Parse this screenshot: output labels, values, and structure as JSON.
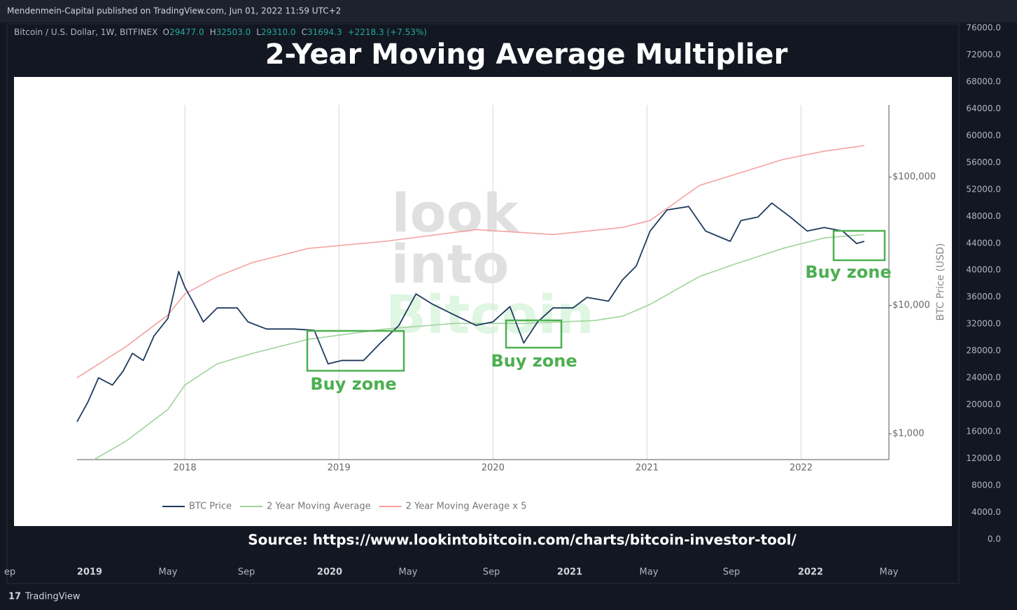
{
  "header": {
    "publisher": "Mendenmein-Capital published on TradingView.com, Jun 01, 2022 11:59 UTC+2"
  },
  "symbol": {
    "name": "Bitcoin / U.S. Dollar, 1W, BITFINEX",
    "ohlc": [
      {
        "label": "O",
        "value": "29477.0"
      },
      {
        "label": "H",
        "value": "32503.0"
      },
      {
        "label": "L",
        "value": "29310.0"
      },
      {
        "label": "C",
        "value": "31694.3"
      }
    ],
    "change": "+2218.3 (+7.53%)"
  },
  "chart_data": {
    "type": "line",
    "title": "2-Year Moving Average Multiplier",
    "ylabel": "BTC Price (USD)",
    "log_y": true,
    "grid_x": true,
    "legend": "bottom",
    "xlim": [
      2017.3,
      2022.57
    ],
    "xticks": [
      2018,
      2019,
      2020,
      2021,
      2022
    ],
    "ylim": [
      630,
      365000
    ],
    "yticks": [
      {
        "value": 1000,
        "label": "$1,000"
      },
      {
        "value": 10000,
        "label": "$10,000"
      },
      {
        "value": 100000,
        "label": "$100,000"
      }
    ],
    "watermark": [
      "look",
      "into",
      "Bitcoin"
    ],
    "annotations": [
      "Buy zone",
      "Buy zone",
      "Buy zone"
    ],
    "series": [
      {
        "name": "BTC Price",
        "color": "#1f3a5f",
        "x": [
          2017.3,
          2017.37,
          2017.44,
          2017.53,
          2017.6,
          2017.66,
          2017.73,
          2017.8,
          2017.89,
          2017.96,
          2018.0,
          2018.05,
          2018.12,
          2018.21,
          2018.34,
          2018.41,
          2018.53,
          2018.71,
          2018.84,
          2018.93,
          2019.02,
          2019.16,
          2019.27,
          2019.39,
          2019.5,
          2019.61,
          2019.75,
          2019.89,
          2020.0,
          2020.11,
          2020.2,
          2020.29,
          2020.39,
          2020.52,
          2020.61,
          2020.75,
          2020.84,
          2020.93,
          2021.02,
          2021.13,
          2021.27,
          2021.38,
          2021.54,
          2021.61,
          2021.72,
          2021.81,
          2021.93,
          2022.04,
          2022.15,
          2022.27,
          2022.36,
          2022.41
        ],
        "values": [
          1240,
          1760,
          2730,
          2400,
          3090,
          4240,
          3730,
          5800,
          7930,
          18400,
          13900,
          10800,
          7450,
          9570,
          9570,
          7450,
          6560,
          6560,
          6400,
          3510,
          3730,
          3730,
          5100,
          7000,
          12300,
          10200,
          8430,
          7000,
          7450,
          9800,
          5100,
          7450,
          9570,
          9570,
          11560,
          10800,
          15800,
          20300,
          38000,
          55500,
          59000,
          38000,
          31600,
          45900,
          48900,
          62800,
          48900,
          38000,
          40500,
          38000,
          30400,
          31600
        ]
      },
      {
        "name": "2 Year Moving Average",
        "color": "#9fd49c",
        "x": [
          2017.41,
          2017.62,
          2017.89,
          2018.0,
          2018.21,
          2018.44,
          2018.8,
          2019.3,
          2019.75,
          2020.2,
          2020.66,
          2020.84,
          2021.02,
          2021.34,
          2021.56,
          2021.88,
          2022.15,
          2022.41
        ],
        "values": [
          630,
          880,
          1550,
          2400,
          3510,
          4240,
          5450,
          6560,
          7250,
          7250,
          7630,
          8240,
          10200,
          16800,
          20800,
          27800,
          33600,
          35700
        ]
      },
      {
        "name": "2 Year Moving Average x 5",
        "color": "#f4a3a0",
        "x": [
          2017.3,
          2017.62,
          2017.89,
          2018.0,
          2018.21,
          2018.44,
          2018.8,
          2019.3,
          2019.89,
          2020.39,
          2020.84,
          2021.02,
          2021.34,
          2021.56,
          2021.88,
          2022.15,
          2022.41
        ],
        "values": [
          2730,
          4800,
          8430,
          12300,
          16800,
          21600,
          27800,
          31600,
          39000,
          35700,
          40500,
          45900,
          86100,
          104000,
          137000,
          159000,
          176000
        ]
      }
    ]
  },
  "source": "Source: https://www.lookintobitcoin.com/charts/bitcoin-investor-tool/",
  "price_scale": [
    "76000.0",
    "72000.0",
    "68000.0",
    "64000.0",
    "60000.0",
    "56000.0",
    "52000.0",
    "48000.0",
    "44000.0",
    "40000.0",
    "36000.0",
    "32000.0",
    "28000.0",
    "24000.0",
    "20000.0",
    "16000.0",
    "12000.0",
    "8000.0",
    "4000.0",
    "0.0"
  ],
  "time_scale": [
    "ep",
    "2019",
    "May",
    "Sep",
    "2020",
    "May",
    "Sep",
    "2021",
    "May",
    "Sep",
    "2022",
    "May"
  ],
  "footer": {
    "brand": "TradingView"
  }
}
